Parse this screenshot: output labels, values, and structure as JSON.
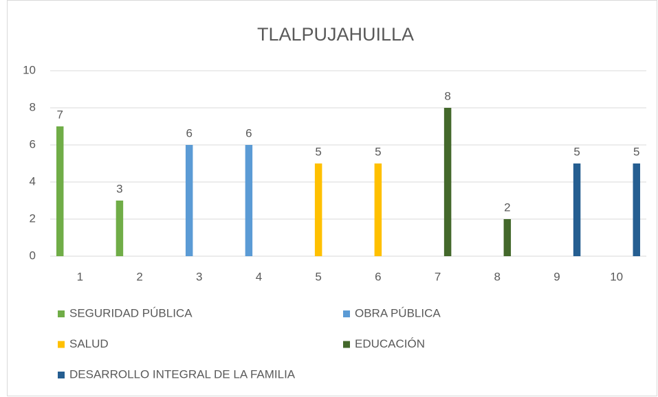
{
  "chart_data": {
    "type": "bar",
    "title": "TLALPUJAHUILLA",
    "categories": [
      "1",
      "2",
      "3",
      "4",
      "5",
      "6",
      "7",
      "8",
      "9",
      "10"
    ],
    "series": [
      {
        "name": "SEGURIDAD PÚBLICA",
        "color": "#70ad47",
        "values": [
          7,
          3,
          null,
          null,
          null,
          null,
          null,
          null,
          null,
          null
        ]
      },
      {
        "name": "OBRA PÚBLICA",
        "color": "#5b9bd5",
        "values": [
          null,
          null,
          6,
          6,
          null,
          null,
          null,
          null,
          null,
          null
        ]
      },
      {
        "name": "SALUD",
        "color": "#ffc000",
        "values": [
          null,
          null,
          null,
          null,
          5,
          5,
          null,
          null,
          null,
          null
        ]
      },
      {
        "name": "EDUCACIÓN",
        "color": "#43682b",
        "values": [
          null,
          null,
          null,
          null,
          null,
          null,
          8,
          2,
          null,
          null
        ]
      },
      {
        "name": "DESARROLLO INTEGRAL DE LA FAMILIA",
        "color": "#255e91",
        "values": [
          null,
          null,
          null,
          null,
          null,
          null,
          null,
          null,
          5,
          5
        ]
      }
    ],
    "ylim": [
      0,
      10
    ],
    "yticks": [
      0,
      2,
      4,
      6,
      8,
      10
    ],
    "grid": true,
    "legend": "bottom"
  }
}
